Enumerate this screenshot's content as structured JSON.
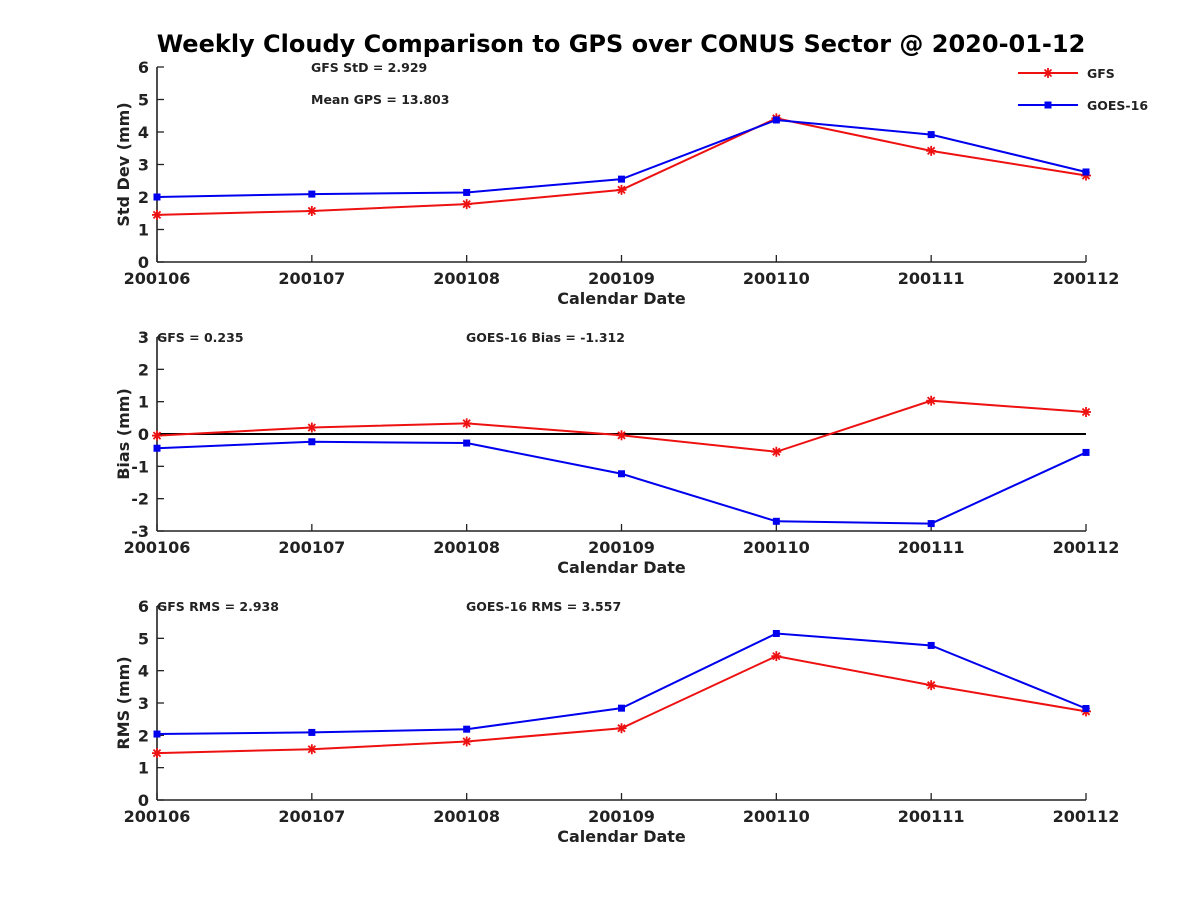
{
  "title": "Weekly Cloudy Comparison to GPS over CONUS Sector @ 2020-01-12",
  "colors": {
    "gfs": "#ee1111",
    "goes": "#0000ee",
    "axis": "#222222",
    "zero_line": "#000000"
  },
  "legend": {
    "placement": "top-right",
    "items": [
      "GFS",
      "GOES-16"
    ]
  },
  "chart_data": [
    {
      "type": "line",
      "ylabel": "Std Dev (mm)",
      "xlabel": "Calendar Date",
      "ylim": [
        0,
        6
      ],
      "yticks": [
        0,
        1,
        2,
        3,
        4,
        5,
        6
      ],
      "categories": [
        "200106",
        "200107",
        "200108",
        "200109",
        "200110",
        "200111",
        "200112"
      ],
      "annotations": [
        "GFS StD = 2.929",
        "Mean GPS = 13.803"
      ],
      "series": [
        {
          "name": "GFS",
          "color": "#ee1111",
          "marker": "star",
          "values": [
            1.45,
            1.57,
            1.78,
            2.22,
            4.42,
            3.42,
            2.66
          ]
        },
        {
          "name": "GOES-16",
          "color": "#0000ee",
          "marker": "square",
          "values": [
            2.0,
            2.09,
            2.14,
            2.55,
            4.37,
            3.92,
            2.77
          ]
        }
      ]
    },
    {
      "type": "line",
      "ylabel": "Bias (mm)",
      "xlabel": "Calendar Date",
      "ylim": [
        -3,
        3
      ],
      "yticks": [
        -3,
        -2,
        -1,
        0,
        1,
        2,
        3
      ],
      "zero_line": true,
      "categories": [
        "200106",
        "200107",
        "200108",
        "200109",
        "200110",
        "200111",
        "200112"
      ],
      "annotations": [
        "GFS = 0.235",
        "GOES-16 Bias  = -1.312"
      ],
      "series": [
        {
          "name": "GFS",
          "color": "#ee1111",
          "marker": "star",
          "values": [
            -0.05,
            0.2,
            0.33,
            -0.04,
            -0.55,
            1.03,
            0.68
          ]
        },
        {
          "name": "GOES-16",
          "color": "#0000ee",
          "marker": "square",
          "values": [
            -0.44,
            -0.24,
            -0.28,
            -1.23,
            -2.7,
            -2.77,
            -0.57
          ]
        }
      ]
    },
    {
      "type": "line",
      "ylabel": "RMS (mm)",
      "xlabel": "Calendar Date",
      "ylim": [
        0,
        6
      ],
      "yticks": [
        0,
        1,
        2,
        3,
        4,
        5,
        6
      ],
      "categories": [
        "200106",
        "200107",
        "200108",
        "200109",
        "200110",
        "200111",
        "200112"
      ],
      "annotations": [
        "GFS RMS = 2.938",
        "GOES-16 RMS = 3.557"
      ],
      "series": [
        {
          "name": "GFS",
          "color": "#ee1111",
          "marker": "star",
          "values": [
            1.45,
            1.57,
            1.81,
            2.22,
            4.45,
            3.55,
            2.74
          ]
        },
        {
          "name": "GOES-16",
          "color": "#0000ee",
          "marker": "square",
          "values": [
            2.04,
            2.09,
            2.19,
            2.84,
            5.15,
            4.78,
            2.83
          ]
        }
      ]
    }
  ]
}
